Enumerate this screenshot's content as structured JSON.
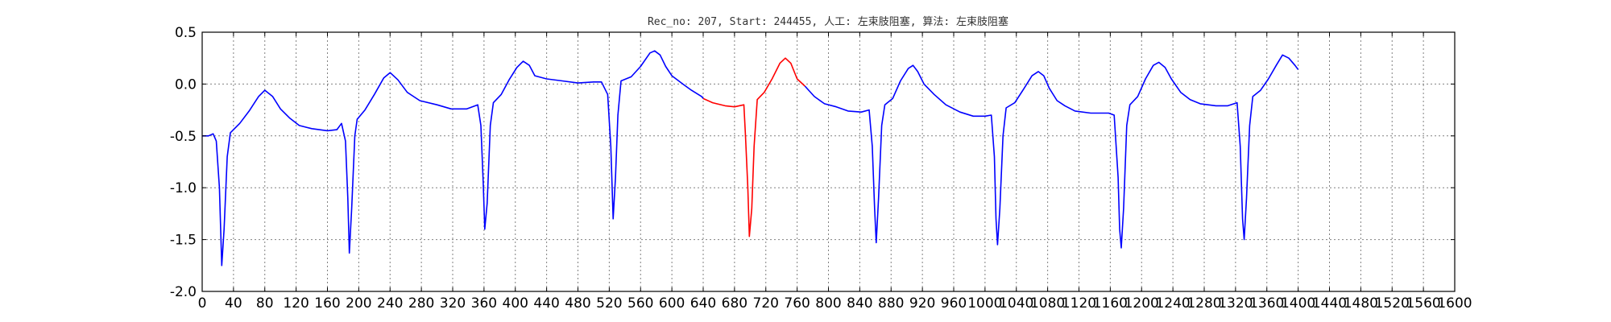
{
  "chart_data": {
    "type": "line",
    "title": "Rec_no: 207, Start: 244455, 人工: 左束肢阻塞, 算法: 左束肢阻塞",
    "xlabel": "",
    "ylabel": "",
    "xlim": [
      0,
      1600
    ],
    "ylim": [
      -2.0,
      0.5
    ],
    "grid": true,
    "x_ticks": [
      0,
      40,
      80,
      120,
      160,
      200,
      240,
      280,
      320,
      360,
      400,
      440,
      480,
      520,
      560,
      600,
      640,
      680,
      720,
      760,
      800,
      840,
      880,
      920,
      960,
      1000,
      1040,
      1080,
      1120,
      1160,
      1200,
      1240,
      1280,
      1320,
      1360,
      1400,
      1440,
      1480,
      1520,
      1560,
      1600
    ],
    "y_ticks": [
      -2.0,
      -1.5,
      -1.0,
      -0.5,
      0.0,
      0.5
    ],
    "series": [
      {
        "name": "",
        "color": "#0000ff",
        "points": [
          [
            0,
            -0.5
          ],
          [
            8,
            -0.5
          ],
          [
            14,
            -0.48
          ],
          [
            18,
            -0.55
          ],
          [
            22,
            -1.0
          ],
          [
            25,
            -1.75
          ],
          [
            28,
            -1.4
          ],
          [
            32,
            -0.7
          ],
          [
            36,
            -0.47
          ],
          [
            48,
            -0.38
          ],
          [
            60,
            -0.26
          ],
          [
            72,
            -0.12
          ],
          [
            80,
            -0.06
          ],
          [
            90,
            -0.12
          ],
          [
            100,
            -0.24
          ],
          [
            112,
            -0.33
          ],
          [
            124,
            -0.4
          ],
          [
            140,
            -0.43
          ],
          [
            160,
            -0.45
          ],
          [
            172,
            -0.44
          ],
          [
            178,
            -0.38
          ],
          [
            183,
            -0.55
          ],
          [
            186,
            -1.1
          ],
          [
            188,
            -1.63
          ],
          [
            191,
            -1.2
          ],
          [
            195,
            -0.5
          ],
          [
            198,
            -0.34
          ],
          [
            208,
            -0.25
          ],
          [
            220,
            -0.1
          ],
          [
            232,
            0.06
          ],
          [
            240,
            0.11
          ],
          [
            250,
            0.04
          ],
          [
            262,
            -0.08
          ],
          [
            278,
            -0.16
          ],
          [
            300,
            -0.2
          ],
          [
            318,
            -0.24
          ],
          [
            338,
            -0.24
          ],
          [
            352,
            -0.2
          ],
          [
            356,
            -0.4
          ],
          [
            359,
            -0.95
          ],
          [
            361,
            -1.4
          ],
          [
            364,
            -1.15
          ],
          [
            368,
            -0.4
          ],
          [
            372,
            -0.18
          ],
          [
            382,
            -0.1
          ],
          [
            392,
            0.04
          ],
          [
            402,
            0.16
          ],
          [
            410,
            0.22
          ],
          [
            418,
            0.18
          ],
          [
            425,
            0.08
          ],
          [
            440,
            0.05
          ],
          [
            460,
            0.03
          ],
          [
            480,
            0.01
          ],
          [
            500,
            0.02
          ],
          [
            510,
            0.02
          ],
          [
            518,
            -0.1
          ],
          [
            522,
            -0.6
          ],
          [
            525,
            -1.3
          ],
          [
            528,
            -0.9
          ],
          [
            531,
            -0.3
          ],
          [
            535,
            0.03
          ],
          [
            548,
            0.07
          ],
          [
            560,
            0.17
          ],
          [
            572,
            0.3
          ],
          [
            578,
            0.32
          ],
          [
            585,
            0.28
          ],
          [
            592,
            0.17
          ],
          [
            600,
            0.08
          ],
          [
            614,
            0.0
          ],
          [
            625,
            -0.06
          ],
          [
            638,
            -0.12
          ],
          [
            640,
            -0.14
          ]
        ]
      },
      {
        "name": "",
        "color": "#ff0000",
        "points": [
          [
            640,
            -0.14
          ],
          [
            652,
            -0.18
          ],
          [
            668,
            -0.21
          ],
          [
            680,
            -0.22
          ],
          [
            692,
            -0.2
          ],
          [
            694,
            -0.5
          ],
          [
            697,
            -1.0
          ],
          [
            699,
            -1.47
          ],
          [
            702,
            -1.2
          ],
          [
            705,
            -0.6
          ],
          [
            709,
            -0.15
          ],
          [
            718,
            -0.08
          ],
          [
            728,
            0.05
          ],
          [
            738,
            0.2
          ],
          [
            745,
            0.25
          ],
          [
            752,
            0.2
          ],
          [
            760,
            0.05
          ],
          [
            770,
            -0.02
          ]
        ]
      },
      {
        "name": "",
        "color": "#0000ff",
        "points": [
          [
            770,
            -0.02
          ],
          [
            782,
            -0.12
          ],
          [
            795,
            -0.19
          ],
          [
            810,
            -0.22
          ],
          [
            825,
            -0.26
          ],
          [
            842,
            -0.27
          ],
          [
            852,
            -0.25
          ],
          [
            856,
            -0.6
          ],
          [
            859,
            -1.2
          ],
          [
            861,
            -1.53
          ],
          [
            864,
            -1.1
          ],
          [
            868,
            -0.4
          ],
          [
            872,
            -0.2
          ],
          [
            882,
            -0.14
          ],
          [
            892,
            0.03
          ],
          [
            902,
            0.15
          ],
          [
            908,
            0.18
          ],
          [
            914,
            0.12
          ],
          [
            922,
            0.0
          ],
          [
            935,
            -0.1
          ],
          [
            950,
            -0.2
          ],
          [
            968,
            -0.27
          ],
          [
            985,
            -0.31
          ],
          [
            1000,
            -0.31
          ],
          [
            1008,
            -0.3
          ],
          [
            1012,
            -0.7
          ],
          [
            1014,
            -1.3
          ],
          [
            1016,
            -1.55
          ],
          [
            1019,
            -1.2
          ],
          [
            1023,
            -0.5
          ],
          [
            1027,
            -0.23
          ],
          [
            1038,
            -0.18
          ],
          [
            1050,
            -0.04
          ],
          [
            1060,
            0.08
          ],
          [
            1068,
            0.12
          ],
          [
            1075,
            0.08
          ],
          [
            1082,
            -0.04
          ],
          [
            1092,
            -0.16
          ],
          [
            1102,
            -0.21
          ],
          [
            1115,
            -0.26
          ],
          [
            1135,
            -0.28
          ],
          [
            1158,
            -0.28
          ],
          [
            1165,
            -0.3
          ],
          [
            1170,
            -0.9
          ],
          [
            1172,
            -1.4
          ],
          [
            1174,
            -1.58
          ],
          [
            1177,
            -1.2
          ],
          [
            1181,
            -0.4
          ],
          [
            1185,
            -0.2
          ],
          [
            1195,
            -0.12
          ],
          [
            1205,
            0.05
          ],
          [
            1215,
            0.18
          ],
          [
            1222,
            0.21
          ],
          [
            1230,
            0.16
          ],
          [
            1238,
            0.05
          ],
          [
            1250,
            -0.08
          ],
          [
            1262,
            -0.15
          ],
          [
            1275,
            -0.19
          ],
          [
            1295,
            -0.21
          ],
          [
            1310,
            -0.21
          ],
          [
            1322,
            -0.18
          ],
          [
            1326,
            -0.6
          ],
          [
            1329,
            -1.3
          ],
          [
            1331,
            -1.5
          ],
          [
            1334,
            -1.1
          ],
          [
            1338,
            -0.4
          ],
          [
            1342,
            -0.12
          ],
          [
            1352,
            -0.06
          ],
          [
            1362,
            0.05
          ],
          [
            1372,
            0.18
          ],
          [
            1380,
            0.28
          ],
          [
            1388,
            0.25
          ],
          [
            1396,
            0.18
          ],
          [
            1400,
            0.14
          ]
        ]
      }
    ]
  }
}
